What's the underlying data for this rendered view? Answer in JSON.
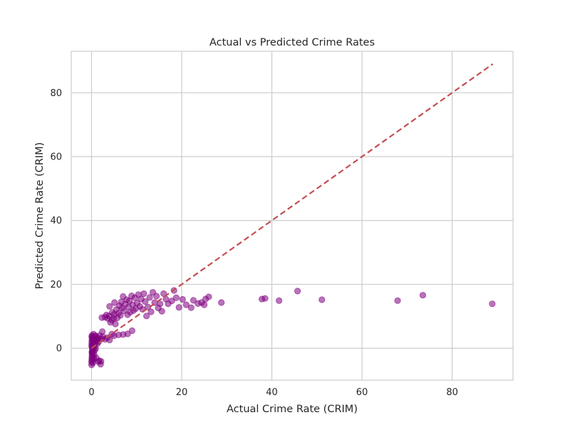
{
  "chart_data": {
    "type": "scatter",
    "title": "Actual vs Predicted Crime Rates",
    "xlabel": "Actual Crime Rate (CRIM)",
    "ylabel": "Predicted Crime Rate (CRIM)",
    "xlim": [
      -4.5,
      93.5
    ],
    "ylim": [
      -10,
      93
    ],
    "xticks": [
      0,
      20,
      40,
      60,
      80
    ],
    "yticks": [
      0,
      20,
      40,
      60,
      80
    ],
    "grid": true,
    "point_color": "#800080",
    "reference_line": {
      "x": [
        0,
        89
      ],
      "y": [
        0,
        89
      ],
      "color": "#c44e52",
      "style": "dashed"
    },
    "points": [
      [
        0.01,
        -5.2
      ],
      [
        0.02,
        -4.4
      ],
      [
        0.05,
        -3.8
      ],
      [
        0.08,
        -3.2
      ],
      [
        0.1,
        -2.6
      ],
      [
        0.12,
        -2.0
      ],
      [
        0.15,
        -1.5
      ],
      [
        0.18,
        -1.0
      ],
      [
        0.2,
        -0.5
      ],
      [
        0.22,
        0.0
      ],
      [
        0.25,
        0.5
      ],
      [
        0.28,
        1.0
      ],
      [
        0.3,
        1.5
      ],
      [
        0.33,
        2.0
      ],
      [
        0.36,
        2.5
      ],
      [
        0.4,
        3.0
      ],
      [
        0.05,
        3.6
      ],
      [
        0.1,
        4.0
      ],
      [
        0.15,
        3.3
      ],
      [
        0.2,
        2.8
      ],
      [
        0.3,
        -4.6
      ],
      [
        0.4,
        -3.6
      ],
      [
        0.5,
        -2.8
      ],
      [
        0.55,
        -1.8
      ],
      [
        0.6,
        -0.8
      ],
      [
        0.65,
        0.2
      ],
      [
        0.7,
        1.1
      ],
      [
        0.75,
        2.1
      ],
      [
        0.8,
        3.1
      ],
      [
        0.85,
        3.9
      ],
      [
        0.02,
        0.8
      ],
      [
        0.04,
        1.6
      ],
      [
        0.06,
        2.4
      ],
      [
        0.08,
        -1.2
      ],
      [
        0.12,
        0.3
      ],
      [
        0.45,
        4.4
      ],
      [
        0.9,
        -0.2
      ],
      [
        0.95,
        1.8
      ],
      [
        1.0,
        2.9
      ],
      [
        1.05,
        -3.0
      ],
      [
        1.1,
        3.6
      ],
      [
        1.2,
        2.5
      ],
      [
        1.3,
        1.4
      ],
      [
        1.4,
        3.1
      ],
      [
        1.5,
        -4.2
      ],
      [
        1.6,
        2.1
      ],
      [
        1.7,
        -3.9
      ],
      [
        1.8,
        4.0
      ],
      [
        2.0,
        -5.0
      ],
      [
        2.1,
        -4.1
      ],
      [
        2.2,
        2.9
      ],
      [
        2.4,
        5.2
      ],
      [
        2.5,
        3.6
      ],
      [
        3.0,
        2.8
      ],
      [
        3.5,
        3.3
      ],
      [
        4.0,
        2.6
      ],
      [
        4.5,
        4.4
      ],
      [
        5.0,
        3.9
      ],
      [
        6.0,
        4.2
      ],
      [
        7.0,
        4.3
      ],
      [
        8.0,
        4.5
      ],
      [
        9.0,
        5.5
      ],
      [
        2.3,
        9.6
      ],
      [
        3.0,
        9.7
      ],
      [
        3.3,
        10.4
      ],
      [
        3.6,
        9.3
      ],
      [
        3.9,
        10.1
      ],
      [
        4.0,
        13.1
      ],
      [
        4.2,
        8.1
      ],
      [
        4.5,
        8.8
      ],
      [
        4.6,
        11.2
      ],
      [
        4.9,
        9.3
      ],
      [
        5.0,
        10.6
      ],
      [
        5.1,
        14.3
      ],
      [
        5.3,
        7.6
      ],
      [
        5.5,
        12.1
      ],
      [
        5.7,
        9.5
      ],
      [
        6.0,
        11.0
      ],
      [
        6.2,
        13.3
      ],
      [
        6.4,
        10.3
      ],
      [
        6.6,
        14.5
      ],
      [
        6.8,
        12.6
      ],
      [
        7.0,
        16.2
      ],
      [
        7.2,
        11.7
      ],
      [
        7.5,
        13.8
      ],
      [
        7.8,
        15.2
      ],
      [
        8.0,
        10.5
      ],
      [
        8.2,
        12.9
      ],
      [
        8.4,
        14.8
      ],
      [
        8.6,
        11.3
      ],
      [
        8.9,
        16.4
      ],
      [
        9.1,
        13.6
      ],
      [
        9.3,
        11.8
      ],
      [
        9.6,
        15.8
      ],
      [
        9.8,
        12.4
      ],
      [
        10.1,
        14.1
      ],
      [
        10.4,
        16.8
      ],
      [
        10.7,
        13.1
      ],
      [
        11.0,
        15.4
      ],
      [
        11.3,
        12.2
      ],
      [
        11.6,
        17.1
      ],
      [
        11.9,
        14.6
      ],
      [
        12.2,
        10.1
      ],
      [
        12.5,
        12.9
      ],
      [
        12.9,
        15.9
      ],
      [
        13.2,
        11.4
      ],
      [
        13.6,
        17.5
      ],
      [
        14.0,
        14.3
      ],
      [
        14.4,
        16.3
      ],
      [
        14.8,
        12.6
      ],
      [
        15.2,
        13.9
      ],
      [
        15.6,
        11.6
      ],
      [
        16.0,
        17.1
      ],
      [
        16.5,
        15.4
      ],
      [
        17.0,
        13.9
      ],
      [
        17.8,
        14.8
      ],
      [
        18.3,
        18.1
      ],
      [
        18.8,
        15.8
      ],
      [
        19.4,
        12.8
      ],
      [
        20.2,
        15.3
      ],
      [
        21.0,
        13.6
      ],
      [
        22.1,
        12.7
      ],
      [
        22.6,
        15.0
      ],
      [
        23.6,
        14.0
      ],
      [
        24.4,
        14.3
      ],
      [
        25.0,
        13.6
      ],
      [
        25.3,
        15.4
      ],
      [
        26.0,
        16.1
      ],
      [
        28.8,
        14.3
      ],
      [
        37.8,
        15.4
      ],
      [
        38.5,
        15.6
      ],
      [
        41.6,
        14.9
      ],
      [
        45.7,
        17.9
      ],
      [
        51.1,
        15.2
      ],
      [
        67.9,
        14.9
      ],
      [
        73.5,
        16.6
      ],
      [
        88.9,
        13.9
      ]
    ]
  }
}
